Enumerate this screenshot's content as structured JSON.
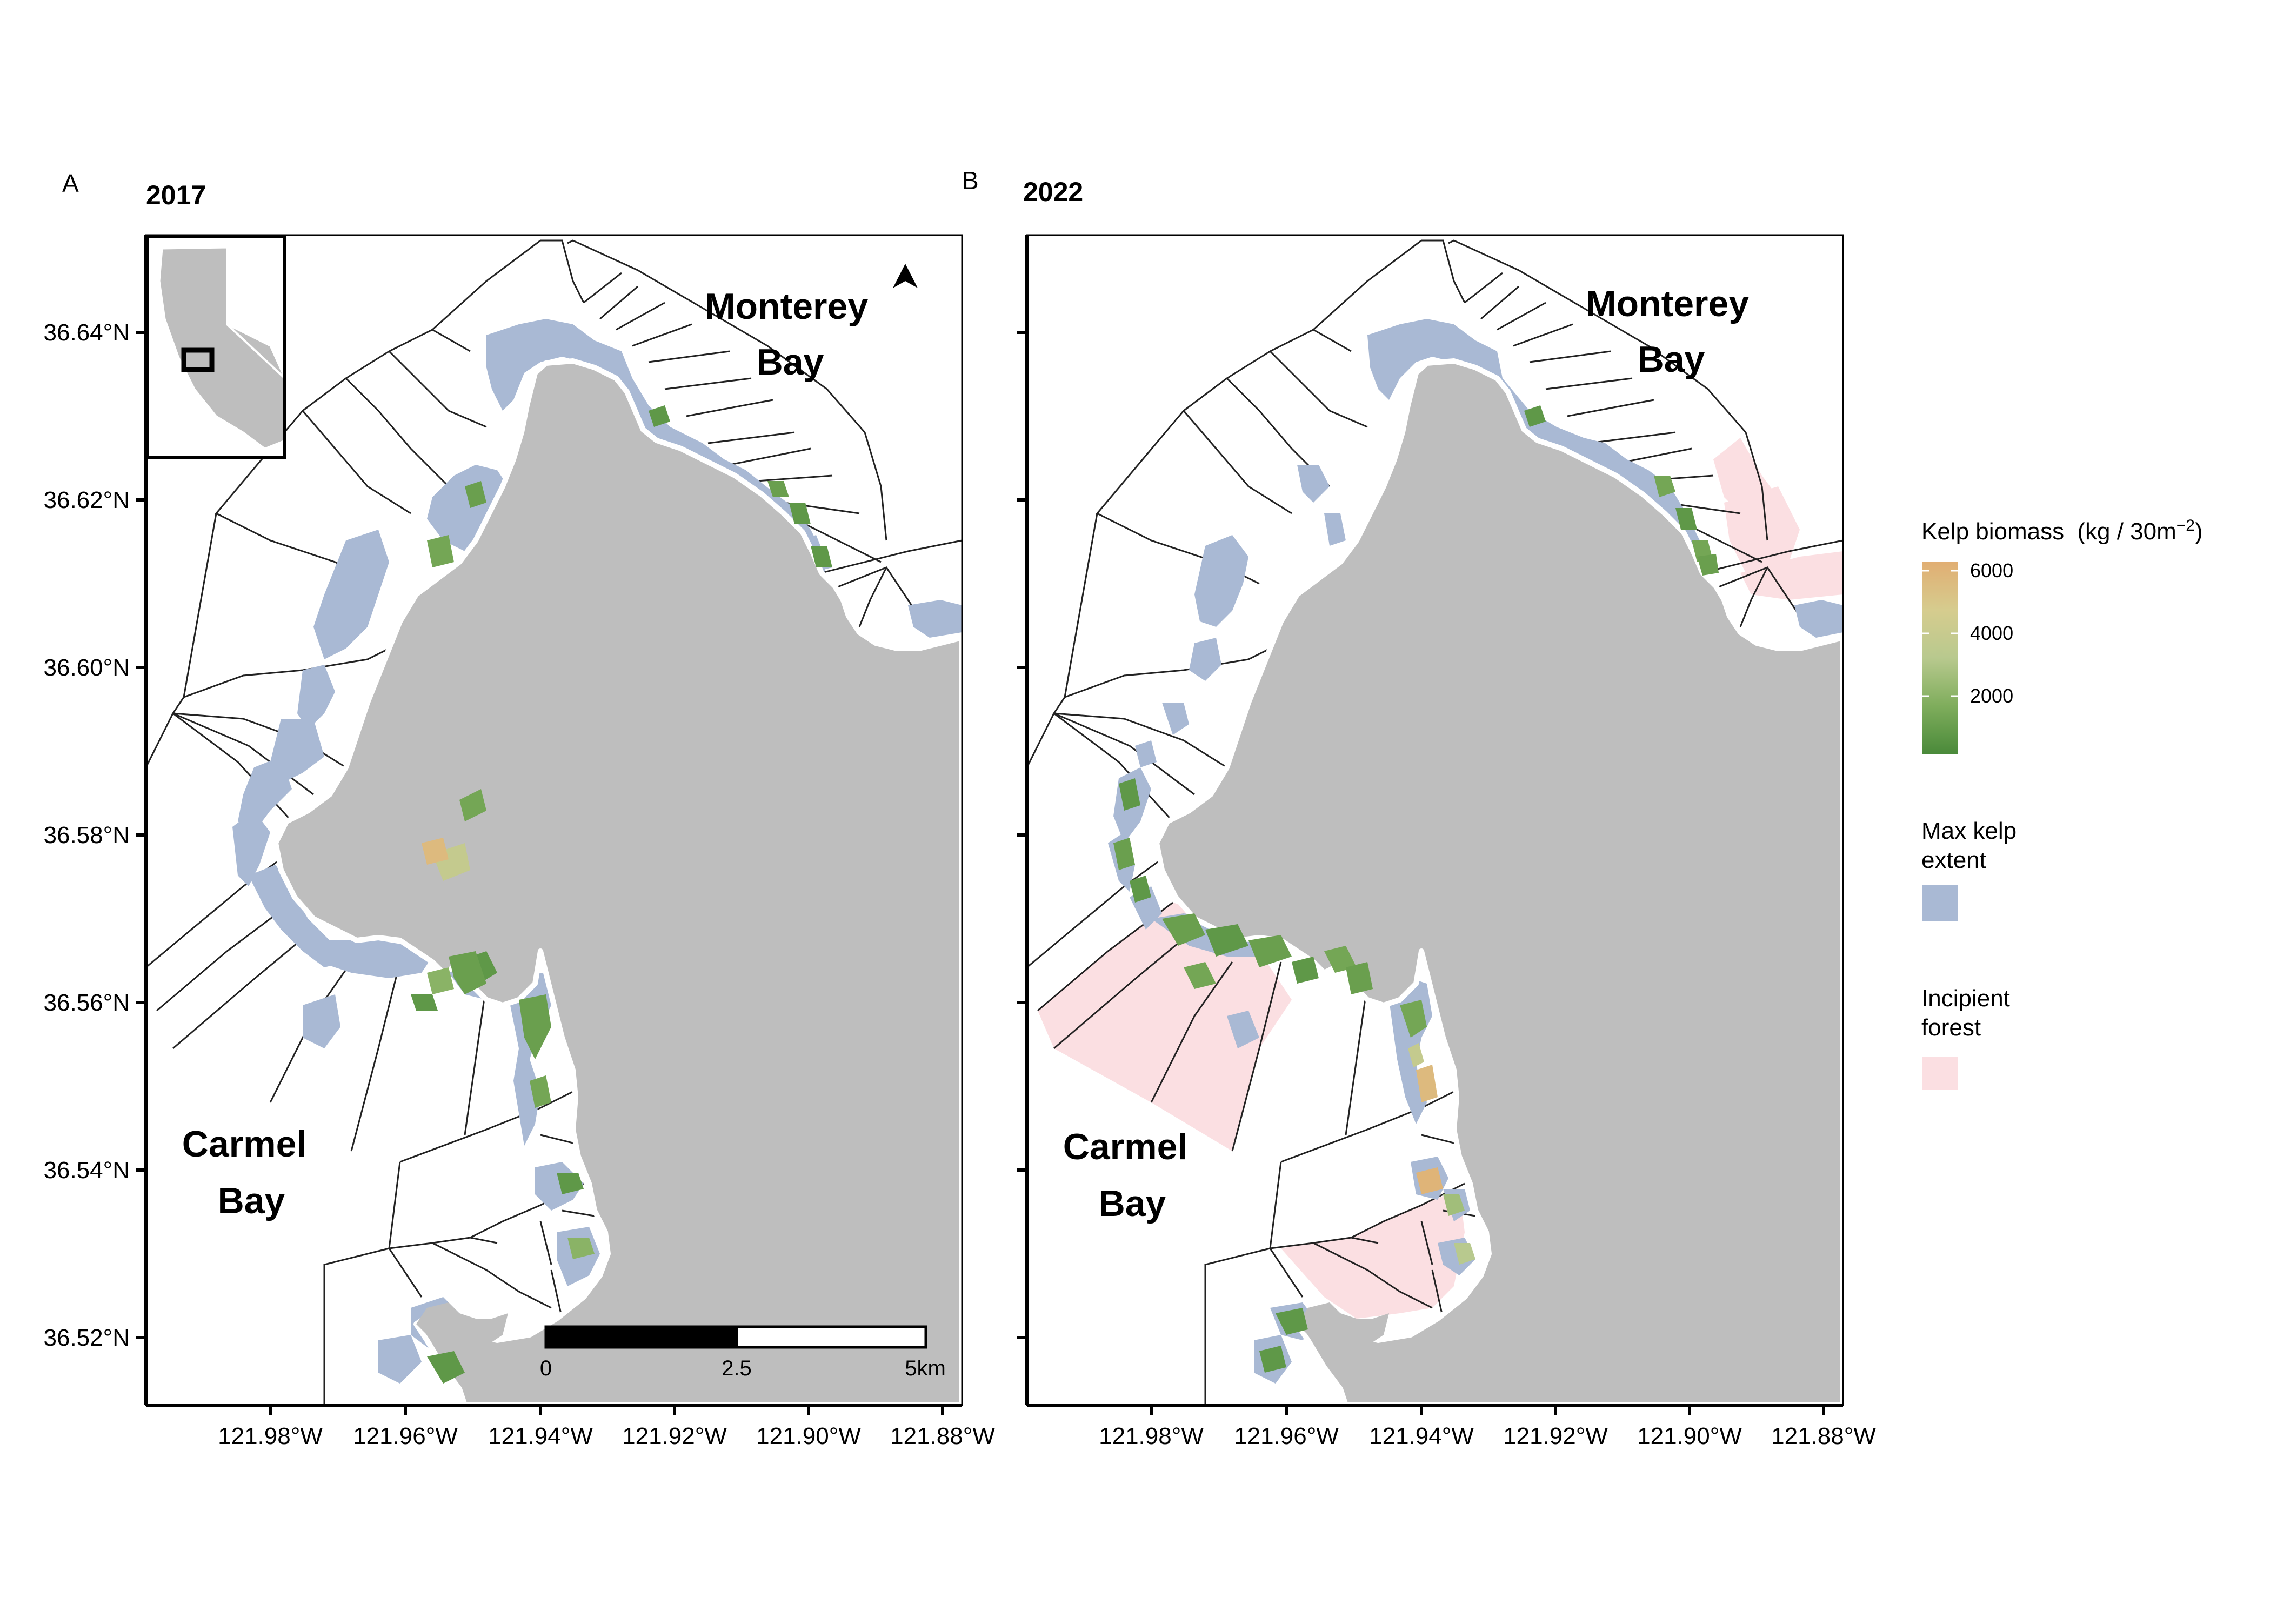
{
  "figure": {
    "panels": [
      {
        "letter": "A",
        "year": "2017",
        "place_labels": [
          {
            "line1": "Monterey",
            "line2": "Bay"
          },
          {
            "line1": "Carmel",
            "line2": "Bay"
          }
        ],
        "lat_ticks": [
          "36.64°N",
          "36.62°N",
          "36.60°N",
          "36.58°N",
          "36.56°N",
          "36.54°N",
          "36.52°N"
        ],
        "lon_ticks": [
          "121.98°W",
          "121.96°W",
          "121.94°W",
          "121.92°W",
          "121.90°W",
          "121.88°W"
        ],
        "has_inset": true,
        "has_north_arrow": true,
        "has_scale_bar": true,
        "incipient_forest": false
      },
      {
        "letter": "B",
        "year": "2022",
        "place_labels": [
          {
            "line1": "Monterey",
            "line2": "Bay"
          },
          {
            "line1": "Carmel",
            "line2": "Bay"
          }
        ],
        "lat_ticks": [],
        "lon_ticks": [
          "121.98°W",
          "121.96°W",
          "121.94°W",
          "121.92°W",
          "121.90°W",
          "121.88°W"
        ],
        "has_inset": false,
        "has_north_arrow": false,
        "has_scale_bar": false,
        "incipient_forest": true
      }
    ],
    "scale_bar": {
      "labels": [
        "0",
        "2.5",
        "5km"
      ]
    },
    "legend": {
      "biomass_title_prefix": "Kelp biomass",
      "biomass_title_unit": "(kg / 30m",
      "biomass_title_sup": "−2",
      "biomass_title_close": ")",
      "biomass_ticks": [
        "6000",
        "4000",
        "2000"
      ],
      "biomass_gradient_colors": [
        "#e1ae73",
        "#d6cc8e",
        "#b8c98e",
        "#7fad5c",
        "#4a8a3a"
      ],
      "max_extent_title_lines": [
        "Max kelp",
        "extent"
      ],
      "incipient_title_lines": [
        "Incipient",
        "forest"
      ]
    },
    "colors": {
      "land": "#bebebe",
      "kelp_extent": "#a9b9d4",
      "incipient_forest": "#fbdfe2",
      "kelp_low": "#4a8a3a",
      "kelp_high": "#e1ae73"
    }
  }
}
